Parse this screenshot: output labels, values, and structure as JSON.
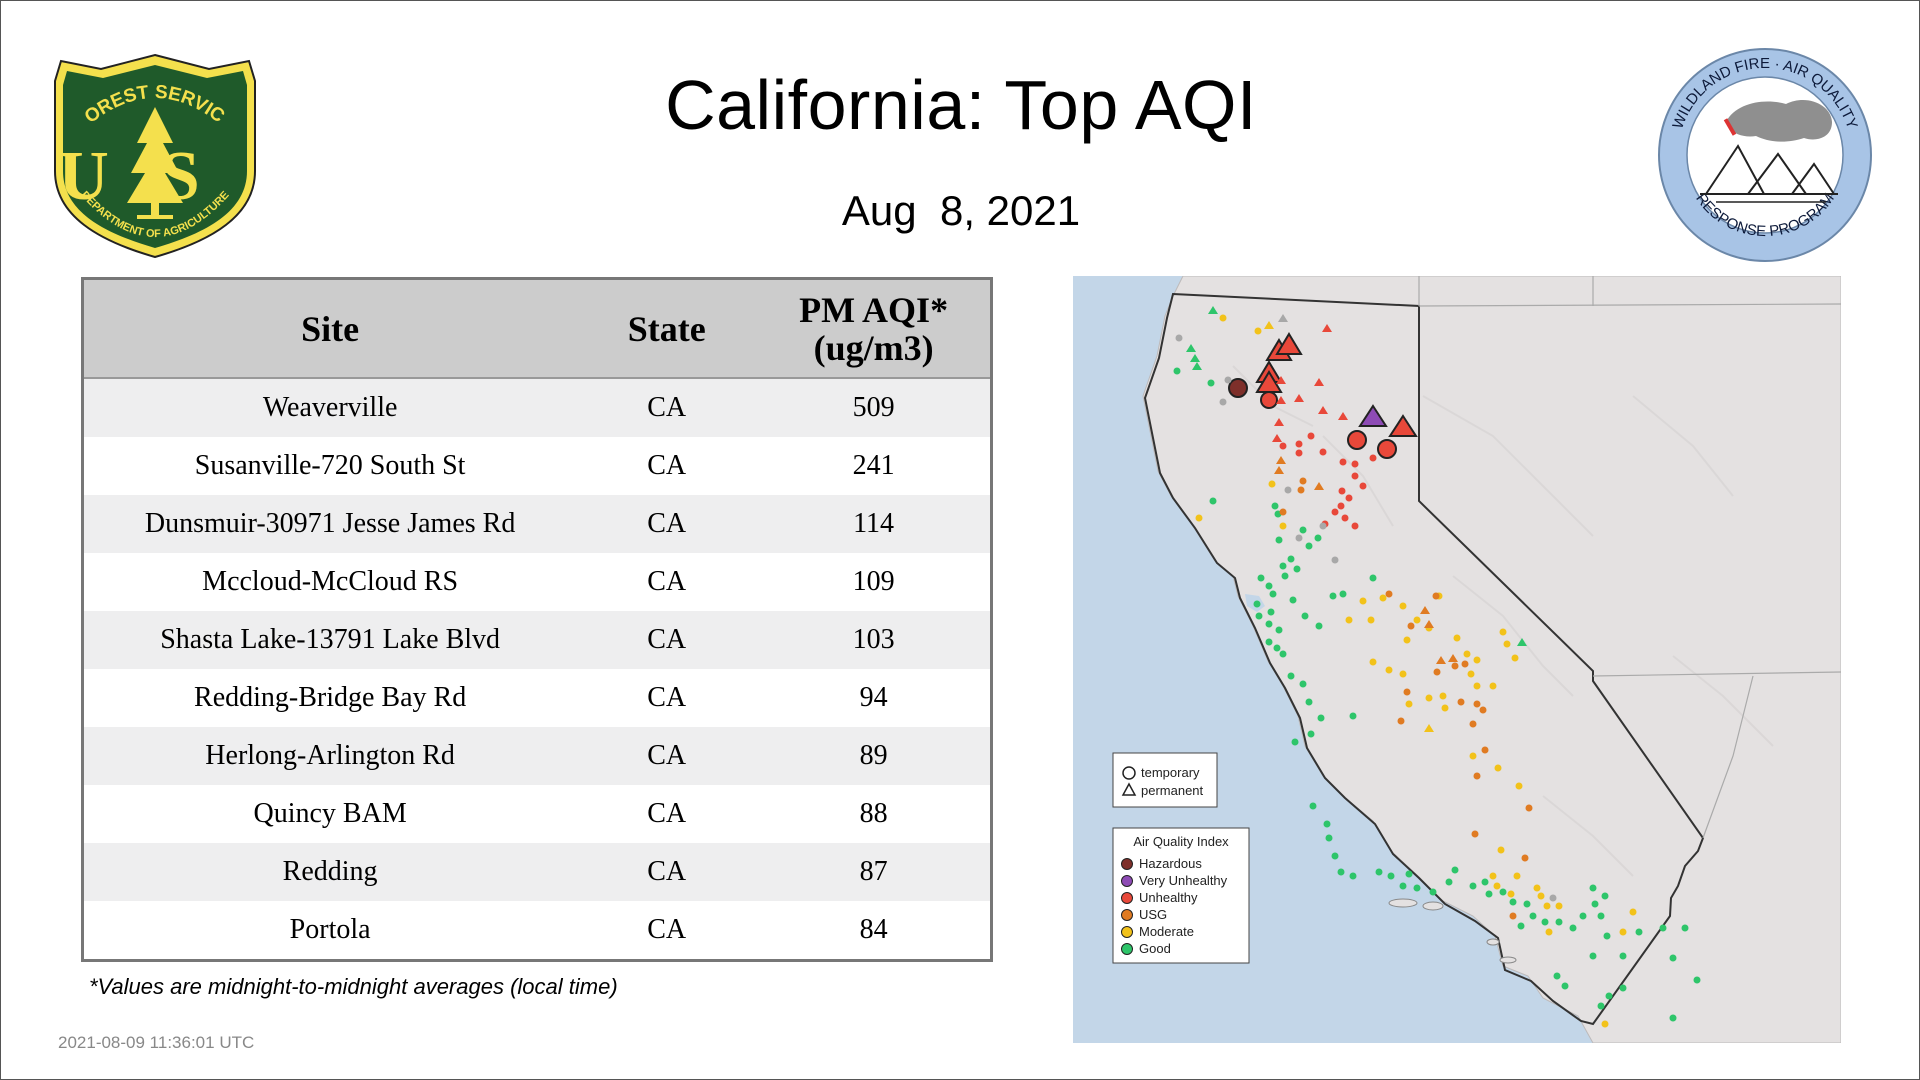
{
  "title": "California: Top AQI",
  "date": "Aug  8, 2021",
  "logos": {
    "usfs_top": "FOREST SERVICE",
    "usfs_mid": "US",
    "usfs_bottom": "DEPARTMENT OF AGRICULTURE",
    "wfa_top": "WILDLAND FIRE · AIR QUALITY",
    "wfa_bottom": "RESPONSE PROGRAM"
  },
  "table": {
    "headers": {
      "site": "Site",
      "state": "State",
      "aqi_line1": "PM AQI*",
      "aqi_line2": "(ug/m3)"
    },
    "rows": [
      {
        "site": "Weaverville",
        "state": "CA",
        "aqi": "509"
      },
      {
        "site": "Susanville-720 South St",
        "state": "CA",
        "aqi": "241"
      },
      {
        "site": "Dunsmuir-30971 Jesse James Rd",
        "state": "CA",
        "aqi": "114"
      },
      {
        "site": "Mccloud-McCloud RS",
        "state": "CA",
        "aqi": "109"
      },
      {
        "site": "Shasta Lake-13791 Lake Blvd",
        "state": "CA",
        "aqi": "103"
      },
      {
        "site": "Redding-Bridge Bay Rd",
        "state": "CA",
        "aqi": "94"
      },
      {
        "site": "Herlong-Arlington Rd",
        "state": "CA",
        "aqi": "89"
      },
      {
        "site": "Quincy BAM",
        "state": "CA",
        "aqi": "88"
      },
      {
        "site": "Redding",
        "state": "CA",
        "aqi": "87"
      },
      {
        "site": "Portola",
        "state": "CA",
        "aqi": "84"
      }
    ]
  },
  "footnote": "*Values are midnight-to-midnight averages (local time)",
  "timestamp": "2021-08-09 11:36:01 UTC",
  "map": {
    "shape_legend": [
      {
        "shape": "circle",
        "label": "temporary"
      },
      {
        "shape": "triangle",
        "label": "permanent"
      }
    ],
    "aqi_legend_title": "Air Quality Index",
    "aqi_legend": [
      {
        "label": "Hazardous",
        "color": "#7e2f2a"
      },
      {
        "label": "Very Unhealthy",
        "color": "#8e4bb5"
      },
      {
        "label": "Unhealthy",
        "color": "#e8483a"
      },
      {
        "label": "USG",
        "color": "#e07b22"
      },
      {
        "label": "Moderate",
        "color": "#f2c21a"
      },
      {
        "label": "Good",
        "color": "#2ec56a"
      }
    ]
  }
}
